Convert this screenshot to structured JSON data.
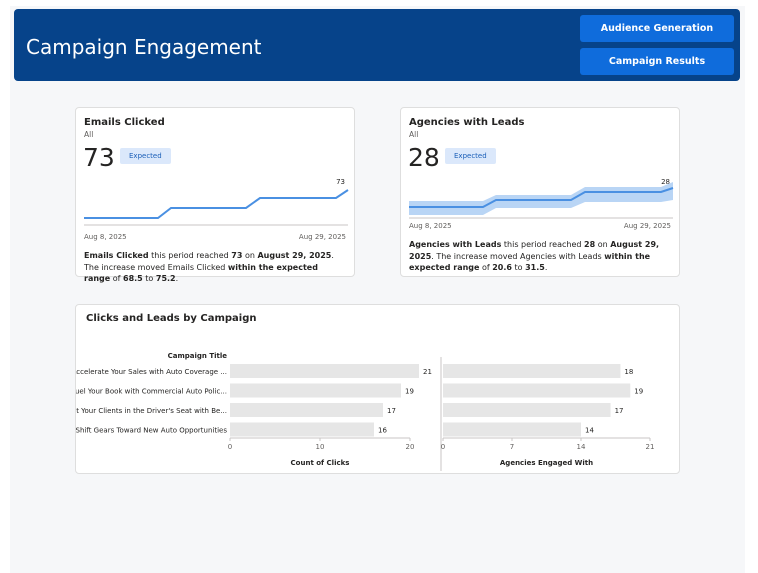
{
  "header": {
    "title": "Campaign Engagement",
    "nav": [
      {
        "label": "Audience Generation"
      },
      {
        "label": "Campaign Results"
      }
    ]
  },
  "kpi_cards": [
    {
      "title": "Emails Clicked",
      "filter": "All",
      "value": "73",
      "badge": "Expected",
      "end_label": "73",
      "date_start": "Aug 8, 2025",
      "date_end": "Aug 29, 2025",
      "desc": {
        "metric": "Emails Clicked",
        "t1": " this period reached ",
        "value": "73",
        "t2": " on ",
        "date": "August 29, 2025",
        "t3": ". The increase moved Emails Clicked ",
        "range_phrase": "within the expected range",
        "t4": " of ",
        "low": "68.5",
        "t5": " to ",
        "high": "75.2",
        "t6": "."
      }
    },
    {
      "title": "Agencies with Leads",
      "filter": "All",
      "value": "28",
      "badge": "Expected",
      "end_label": "28",
      "date_start": "Aug 8, 2025",
      "date_end": "Aug 29, 2025",
      "desc": {
        "metric": "Agencies with Leads",
        "t1": " this period reached ",
        "value": "28",
        "t2": " on ",
        "date": "August 29, 2025",
        "t3": ". The increase moved Agencies with Leads ",
        "range_phrase": "within the expected range",
        "t4": " of ",
        "low": "20.6",
        "t5": " to ",
        "high": "31.5",
        "t6": "."
      }
    }
  ],
  "colors": {
    "header_bg": "#06438a",
    "button_bg": "#0f6cdc",
    "line": "#4a90e2",
    "band": "#b9d5f5",
    "bar": "#e6e6e6"
  },
  "chart_data": {
    "type": "bar",
    "title": "Clicks and Leads by Campaign",
    "category_axis_title": "Campaign Title",
    "categories": [
      "Accelerate Your Sales with Auto Coverage ...",
      "Fuel Your Book with Commercial Auto Polic...",
      "Put Your Clients in the Driver's Seat with Be...",
      "Shift Gears Toward New Auto Opportunities"
    ],
    "series": [
      {
        "name": "Count of Clicks",
        "values": [
          21,
          19,
          17,
          16
        ],
        "xlim": [
          0,
          20
        ],
        "ticks": [
          0,
          10,
          20
        ]
      },
      {
        "name": "Agencies Engaged With",
        "values": [
          18,
          19,
          17,
          14
        ],
        "xlim": [
          0,
          21
        ],
        "ticks": [
          0,
          7,
          14,
          21
        ]
      }
    ]
  }
}
